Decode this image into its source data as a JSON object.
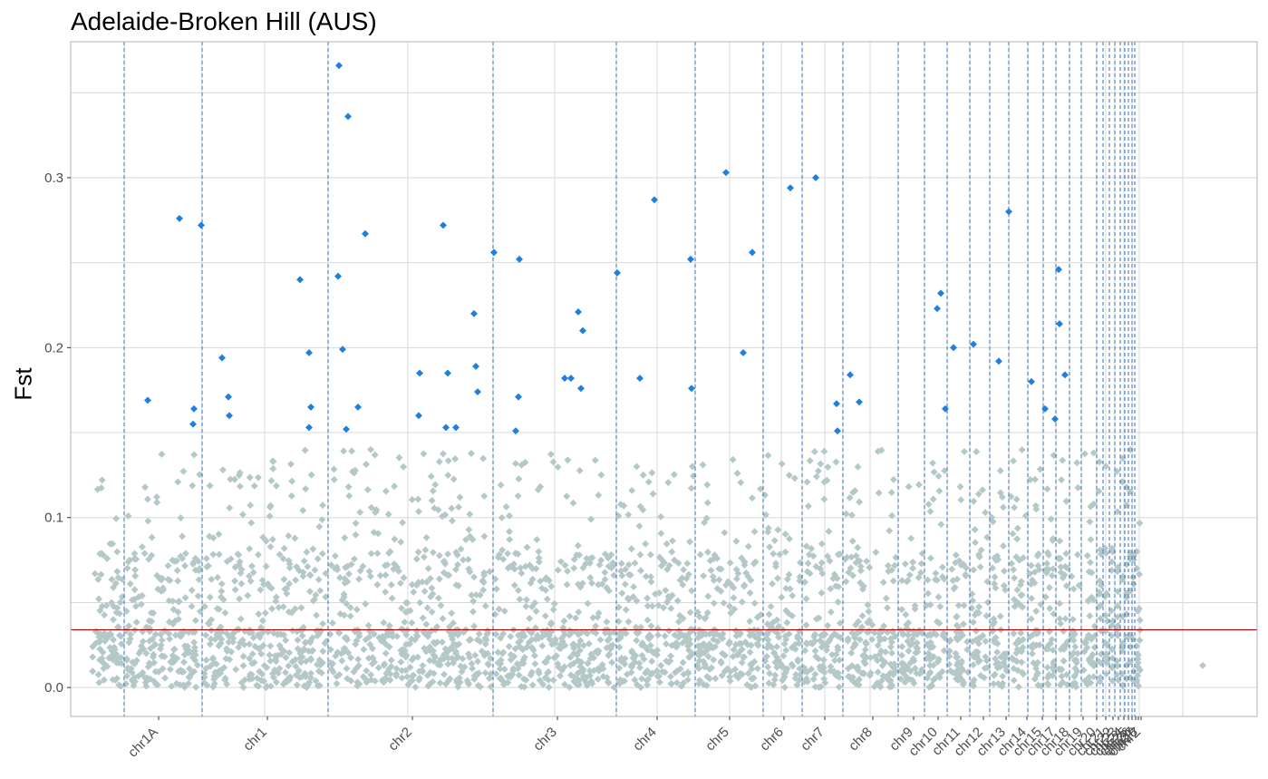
{
  "chart_data": {
    "type": "scatter",
    "title": "Adelaide-Broken Hill (AUS)",
    "xlabel": "",
    "ylabel": "Fst",
    "ylim": [
      -0.017,
      0.38
    ],
    "yticks": [
      0.0,
      0.1,
      0.2,
      0.3
    ],
    "ytick_labels": [
      "0.0",
      "0.1",
      "0.2",
      "0.3"
    ],
    "threshold": 0.034,
    "colors": {
      "background_points": "#b4c8c8",
      "outlier_points": "#1e7fe0",
      "threshold_line": "#b30000",
      "boundary_lines": "#2f6fb5",
      "grid": "#d9d9d9"
    },
    "chromosomes": [
      {
        "name": "chr1A",
        "label_pos": 175
      },
      {
        "name": "chr1",
        "label_pos": 295
      },
      {
        "name": "chr2",
        "label_pos": 455
      },
      {
        "name": "chr3",
        "label_pos": 615
      },
      {
        "name": "chr4",
        "label_pos": 725
      },
      {
        "name": "chr5",
        "label_pos": 805
      },
      {
        "name": "chr6",
        "label_pos": 865
      },
      {
        "name": "chr7",
        "label_pos": 910
      },
      {
        "name": "chr8",
        "label_pos": 963
      },
      {
        "name": "chr9",
        "label_pos": 1008
      },
      {
        "name": "chr10",
        "label_pos": 1035
      },
      {
        "name": "chr11",
        "label_pos": 1060
      },
      {
        "name": "chr12",
        "label_pos": 1085
      },
      {
        "name": "chr13",
        "label_pos": 1110
      },
      {
        "name": "chr14",
        "label_pos": 1133
      },
      {
        "name": "chr15",
        "label_pos": 1150
      },
      {
        "name": "chr17",
        "label_pos": 1165
      },
      {
        "name": "chr18",
        "label_pos": 1180
      },
      {
        "name": "chr19",
        "label_pos": 1195
      },
      {
        "name": "chr20",
        "label_pos": 1210
      },
      {
        "name": "chr21",
        "label_pos": 1220
      },
      {
        "name": "chr22",
        "label_pos": 1228
      },
      {
        "name": "chr23",
        "label_pos": 1234
      },
      {
        "name": "chr24",
        "label_pos": 1240
      },
      {
        "name": "chr25",
        "label_pos": 1245
      },
      {
        "name": "chr26",
        "label_pos": 1249
      },
      {
        "name": "chr27",
        "label_pos": 1253
      },
      {
        "name": "chr28",
        "label_pos": 1256
      },
      {
        "name": "chrZ",
        "label_pos": 1259
      }
    ],
    "boundaries": [
      137,
      223,
      362,
      544,
      680,
      767,
      842,
      885,
      930,
      991,
      1020,
      1045,
      1070,
      1092,
      1113,
      1134,
      1151,
      1165,
      1180,
      1193,
      1210,
      1217,
      1224,
      1230,
      1236,
      1241,
      1245,
      1249,
      1252
    ],
    "outliers": [
      [
        163,
        0.169
      ],
      [
        198,
        0.276
      ],
      [
        214,
        0.164
      ],
      [
        213,
        0.155
      ],
      [
        222,
        0.272
      ],
      [
        245,
        0.194
      ],
      [
        252,
        0.171
      ],
      [
        253,
        0.16
      ],
      [
        331,
        0.24
      ],
      [
        341,
        0.197
      ],
      [
        343,
        0.165
      ],
      [
        341,
        0.153
      ],
      [
        374,
        0.366
      ],
      [
        384,
        0.336
      ],
      [
        373,
        0.242
      ],
      [
        378,
        0.199
      ],
      [
        382,
        0.152
      ],
      [
        395,
        0.165
      ],
      [
        403,
        0.267
      ],
      [
        463,
        0.185
      ],
      [
        462,
        0.16
      ],
      [
        489,
        0.272
      ],
      [
        494,
        0.185
      ],
      [
        492,
        0.153
      ],
      [
        503,
        0.153
      ],
      [
        523,
        0.22
      ],
      [
        525,
        0.189
      ],
      [
        527,
        0.174
      ],
      [
        545,
        0.256
      ],
      [
        573,
        0.252
      ],
      [
        572,
        0.171
      ],
      [
        569,
        0.151
      ],
      [
        623,
        0.182
      ],
      [
        630,
        0.182
      ],
      [
        638,
        0.221
      ],
      [
        643,
        0.21
      ],
      [
        641,
        0.176
      ],
      [
        681,
        0.244
      ],
      [
        706,
        0.182
      ],
      [
        722,
        0.287
      ],
      [
        762,
        0.252
      ],
      [
        763,
        0.176
      ],
      [
        801,
        0.303
      ],
      [
        820,
        0.197
      ],
      [
        830,
        0.256
      ],
      [
        872,
        0.294
      ],
      [
        900,
        0.3
      ],
      [
        923,
        0.167
      ],
      [
        924,
        0.151
      ],
      [
        938,
        0.184
      ],
      [
        948,
        0.168
      ],
      [
        1034,
        0.223
      ],
      [
        1038,
        0.232
      ],
      [
        1043,
        0.164
      ],
      [
        1052,
        0.2
      ],
      [
        1074,
        0.202
      ],
      [
        1102,
        0.192
      ],
      [
        1113,
        0.28
      ],
      [
        1138,
        0.18
      ],
      [
        1153,
        0.164
      ],
      [
        1164,
        0.158
      ],
      [
        1168,
        0.246
      ],
      [
        1169,
        0.214
      ],
      [
        1175,
        0.184
      ]
    ]
  }
}
